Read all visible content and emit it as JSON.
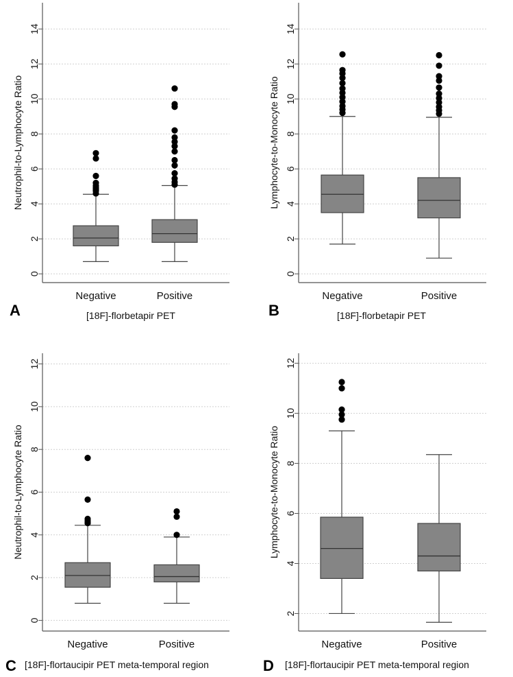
{
  "chart_data": [
    {
      "panel": "A",
      "type": "box",
      "ylabel": "Neutrophil-to-Lymphocyte Ratio",
      "xlabel": "[18F]-florbetapir PET",
      "categories": [
        "Negative",
        "Positive"
      ],
      "ylim": [
        -0.5,
        15.5
      ],
      "yticks": [
        0,
        2,
        4,
        6,
        8,
        10,
        12,
        14
      ],
      "ytick_labels": [
        "0",
        "2",
        "4",
        "6",
        "8",
        "10",
        "12",
        "14"
      ],
      "grid": true,
      "boxes": [
        {
          "whisker_low": 0.7,
          "q1": 1.6,
          "median": 2.05,
          "q3": 2.75,
          "whisker_high": 4.55,
          "outliers": [
            4.6,
            4.75,
            4.85,
            4.95,
            5.05,
            5.2,
            5.6,
            6.6,
            6.9
          ]
        },
        {
          "whisker_low": 0.7,
          "q1": 1.8,
          "median": 2.3,
          "q3": 3.1,
          "whisker_high": 5.05,
          "outliers": [
            5.1,
            5.25,
            5.45,
            5.75,
            6.2,
            6.5,
            7.0,
            7.3,
            7.55,
            7.8,
            8.2,
            9.55,
            9.7,
            10.6
          ]
        }
      ]
    },
    {
      "panel": "B",
      "type": "box",
      "ylabel": "Lymphocyte-to-Monocyte Ratio",
      "xlabel": "[18F]-florbetapir PET",
      "categories": [
        "Negative",
        "Positive"
      ],
      "ylim": [
        -0.5,
        15.5
      ],
      "yticks": [
        0,
        2,
        4,
        6,
        8,
        10,
        12,
        14
      ],
      "ytick_labels": [
        "0",
        "2",
        "4",
        "6",
        "8",
        "10",
        "12",
        "14"
      ],
      "grid": true,
      "boxes": [
        {
          "whisker_low": 1.7,
          "q1": 3.5,
          "median": 4.55,
          "q3": 5.65,
          "whisker_high": 9.0,
          "outliers": [
            9.2,
            9.4,
            9.6,
            9.85,
            10.1,
            10.35,
            10.6,
            10.9,
            11.2,
            11.45,
            11.65,
            12.55
          ]
        },
        {
          "whisker_low": 0.9,
          "q1": 3.2,
          "median": 4.2,
          "q3": 5.5,
          "whisker_high": 8.95,
          "outliers": [
            9.15,
            9.35,
            9.55,
            9.8,
            10.05,
            10.3,
            10.65,
            11.05,
            11.3,
            11.9,
            12.5
          ]
        }
      ]
    },
    {
      "panel": "C",
      "type": "box",
      "ylabel": "Neutrophil-to-Lymphocyte Ratio",
      "xlabel": "[18F]-flortaucipir PET meta-temporal region",
      "categories": [
        "Negative",
        "Positive"
      ],
      "ylim": [
        -0.5,
        12.5
      ],
      "yticks": [
        0,
        2,
        4,
        6,
        8,
        10,
        12
      ],
      "ytick_labels": [
        "0",
        "2",
        "4",
        "6",
        "8",
        "10",
        "12"
      ],
      "grid": true,
      "boxes": [
        {
          "whisker_low": 0.8,
          "q1": 1.55,
          "median": 2.1,
          "q3": 2.7,
          "whisker_high": 4.45,
          "outliers": [
            4.55,
            4.65,
            4.75,
            5.65,
            7.6
          ]
        },
        {
          "whisker_low": 0.8,
          "q1": 1.8,
          "median": 2.05,
          "q3": 2.6,
          "whisker_high": 3.9,
          "outliers": [
            4.0,
            4.85,
            5.1
          ]
        }
      ]
    },
    {
      "panel": "D",
      "type": "box",
      "ylabel": "Lymphocyte-to-Monocyte Ratio",
      "xlabel": "[18F]-flortaucipir PET meta-temporal region",
      "categories": [
        "Negative",
        "Positive"
      ],
      "ylim": [
        1.3,
        12.4
      ],
      "yticks": [
        2,
        4,
        6,
        8,
        10,
        12
      ],
      "ytick_labels": [
        "2",
        "4",
        "6",
        "8",
        "10",
        "12"
      ],
      "grid": true,
      "boxes": [
        {
          "whisker_low": 2.0,
          "q1": 3.4,
          "median": 4.6,
          "q3": 5.85,
          "whisker_high": 9.3,
          "outliers": [
            9.75,
            9.95,
            10.15,
            11.0,
            11.25
          ]
        },
        {
          "whisker_low": 1.65,
          "q1": 3.7,
          "median": 4.3,
          "q3": 5.6,
          "whisker_high": 8.35,
          "outliers": []
        }
      ]
    }
  ],
  "style": {
    "box_fill": "#858585",
    "box_stroke": "#444444",
    "grid_color": "#cfcfcf",
    "axis_color": "#555555",
    "point_color": "#000000"
  }
}
